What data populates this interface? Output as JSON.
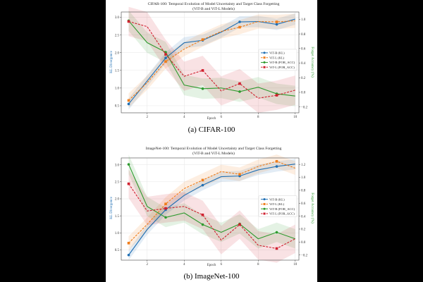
{
  "colors": {
    "vitb_kl": "#1f6fb4",
    "vitl_kl": "#f07d1a",
    "vitb_for": "#2e9a2e",
    "vitl_for": "#d0202f",
    "kl_axis_label": "#1f6fb4",
    "acc_axis_label": "#2e9a2e"
  },
  "chart_data": [
    {
      "type": "line",
      "title_line1": "CIFAR-100: Temporal Evolution of Model Uncertainty and Target Class Forgetting",
      "title_line2": "(ViT-B and ViT-L Models)",
      "xlabel": "Epoch",
      "ylabel_left": "KL Divergence",
      "ylabel_right": "Forget Accuracy (%)",
      "caption": "(a) CIFAR-100",
      "xlim": [
        0.6,
        10.2
      ],
      "ylim_left": [
        0.3,
        3.15
      ],
      "ylim_right": [
        -0.28,
        1.1
      ],
      "xticks": [
        2,
        4,
        6,
        8,
        10
      ],
      "yticks_left": [
        0.5,
        1.0,
        1.5,
        2.0,
        2.5,
        3.0
      ],
      "yticks_right": [
        -0.2,
        0.0,
        0.2,
        0.4,
        0.6,
        0.8,
        1.0
      ],
      "x": [
        1,
        2,
        3,
        4,
        5,
        6,
        7,
        8,
        9,
        10
      ],
      "series": [
        {
          "name": "ViT-B (KL)",
          "axis": "left",
          "style": "solid",
          "marker": "circle",
          "color_key": "vitb_kl",
          "values": [
            0.55,
            1.2,
            1.85,
            2.28,
            2.35,
            2.58,
            2.87,
            2.88,
            2.8,
            2.95
          ],
          "band": 0.16,
          "markers_at": [
            0,
            2,
            4,
            6,
            8
          ]
        },
        {
          "name": "ViT-L (KL)",
          "axis": "left",
          "style": "dashed",
          "marker": "square",
          "color_key": "vitl_kl",
          "values": [
            0.65,
            1.15,
            1.75,
            2.1,
            2.37,
            2.6,
            2.72,
            2.88,
            2.87,
            2.9
          ],
          "band": 0.2,
          "markers_at": [
            0,
            2,
            4,
            6,
            8
          ]
        },
        {
          "name": "ViT-B (FOR_ACC)",
          "axis": "right",
          "style": "solid",
          "marker": "circle",
          "color_key": "vitb_for",
          "values": [
            0.98,
            0.68,
            0.55,
            0.1,
            0.05,
            0.06,
            0.01,
            0.07,
            -0.02,
            -0.05
          ],
          "band": 0.14,
          "markers_at": [
            0,
            2,
            4,
            6,
            8
          ]
        },
        {
          "name": "ViT-L (FOR_ACC)",
          "axis": "right",
          "style": "dashed",
          "marker": "square",
          "color_key": "vitl_for",
          "values": [
            0.97,
            0.9,
            0.52,
            0.22,
            0.3,
            0.02,
            0.12,
            -0.08,
            -0.04,
            0.03
          ],
          "band": 0.2,
          "markers_at": [
            0,
            2,
            4,
            6,
            8
          ]
        }
      ]
    },
    {
      "type": "line",
      "title_line1": "ImageNet-100: Temporal Evolution of Model Uncertainty and Target Class Forgetting",
      "title_line2": "(ViT-B and ViT-L Models)",
      "xlabel": "Epoch",
      "ylabel_left": "KL Divergence",
      "ylabel_right": "Forget Accuracy (%)",
      "caption": "(b) ImageNet-100",
      "xlim": [
        0.6,
        10.2
      ],
      "ylim_left": [
        0.2,
        3.2
      ],
      "ylim_right": [
        -0.28,
        1.3
      ],
      "xticks": [
        2,
        4,
        6,
        8,
        10
      ],
      "yticks_left": [
        0.5,
        1.0,
        1.5,
        2.0,
        2.5,
        3.0
      ],
      "yticks_right": [
        -0.2,
        0.0,
        0.2,
        0.4,
        0.6,
        0.8,
        1.0,
        1.2
      ],
      "x": [
        1,
        2,
        3,
        4,
        5,
        6,
        7,
        8,
        9,
        10
      ],
      "series": [
        {
          "name": "ViT-B (KL)",
          "axis": "left",
          "style": "solid",
          "marker": "circle",
          "color_key": "vitb_kl",
          "values": [
            0.35,
            1.1,
            1.68,
            2.1,
            2.4,
            2.65,
            2.67,
            2.85,
            2.95,
            3.02
          ],
          "band": 0.15,
          "markers_at": [
            0,
            2,
            4,
            6,
            8
          ]
        },
        {
          "name": "ViT-L (KL)",
          "axis": "left",
          "style": "dashed",
          "marker": "square",
          "color_key": "vitl_kl",
          "values": [
            0.7,
            1.25,
            1.85,
            2.3,
            2.55,
            2.8,
            2.72,
            2.95,
            3.1,
            2.9
          ],
          "band": 0.2,
          "markers_at": [
            0,
            2,
            4,
            6,
            8
          ]
        },
        {
          "name": "ViT-B (FOR_ACC)",
          "axis": "right",
          "style": "solid",
          "marker": "circle",
          "color_key": "vitb_for",
          "values": [
            1.2,
            0.55,
            0.38,
            0.45,
            0.27,
            0.15,
            0.28,
            0.05,
            0.15,
            0.05
          ],
          "band": 0.15,
          "markers_at": [
            0,
            2,
            4,
            6,
            8
          ]
        },
        {
          "name": "ViT-L (FOR_ACC)",
          "axis": "right",
          "style": "dashed",
          "marker": "square",
          "color_key": "vitl_for",
          "values": [
            0.9,
            0.48,
            0.52,
            0.55,
            0.42,
            0.03,
            0.27,
            -0.05,
            -0.1,
            0.05
          ],
          "band": 0.22,
          "markers_at": [
            0,
            2,
            4,
            6,
            8
          ]
        }
      ]
    }
  ]
}
